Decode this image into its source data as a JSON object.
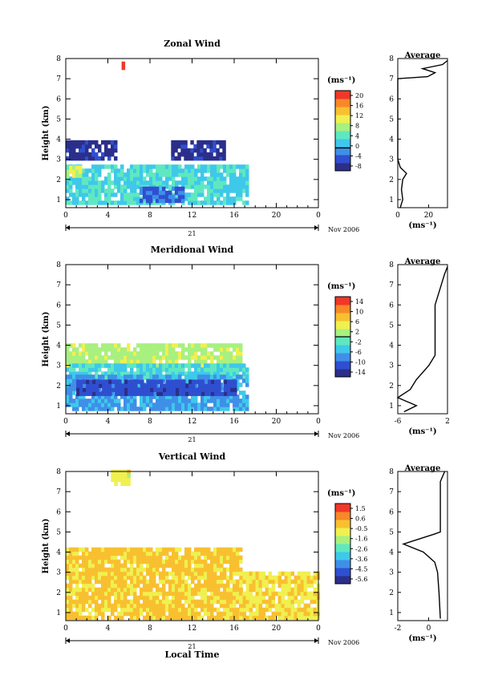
{
  "figure": {
    "y_label": "Height (km)",
    "x_label": "Local Time",
    "date_label": "Nov 2006",
    "day_label": "21",
    "x_ticks": [
      "0",
      "4",
      "8",
      "12",
      "16",
      "20",
      "0"
    ],
    "y_ticks": [
      "1",
      "2",
      "3",
      "4",
      "5",
      "6",
      "7",
      "8"
    ],
    "unit_label": "(ms⁻¹)",
    "avg_title": "Average",
    "avg_unit_label": "(ms⁻¹)"
  },
  "chart_data": [
    {
      "type": "heatmap",
      "title": "Zonal Wind",
      "x": "Local Time (h)",
      "xlim": [
        0,
        24
      ],
      "ylabel": "Height (km)",
      "ylim": [
        0.6,
        8
      ],
      "colorbar": {
        "ticks": [
          "20",
          "16",
          "12",
          "8",
          "4",
          "0",
          "-4",
          "-8"
        ],
        "range": [
          -8,
          20
        ],
        "contour_level": 0
      },
      "palette": [
        "#2b2f8a",
        "#2f4fd0",
        "#3f8fe8",
        "#3fc8ea",
        "#5fe8c0",
        "#a8f080",
        "#f0f050",
        "#f8c030",
        "#f88828",
        "#f03828"
      ],
      "regions": [
        {
          "x": [
            0,
            4.8
          ],
          "h": [
            2.95,
            3.75
          ],
          "value": -6
        },
        {
          "x": [
            10,
            15
          ],
          "h": [
            2.95,
            3.75
          ],
          "value": -6
        },
        {
          "x": [
            0,
            17.3
          ],
          "h": [
            0.75,
            2.6
          ],
          "value": 3
        },
        {
          "x": [
            7,
            11
          ],
          "h": [
            0.85,
            1.5
          ],
          "value": -3
        },
        {
          "x": [
            0,
            1.5
          ],
          "h": [
            2.1,
            2.5
          ],
          "value": 9
        },
        {
          "x": [
            5.3,
            5.5
          ],
          "h": [
            7.45,
            7.8
          ],
          "value": 20
        }
      ],
      "average": {
        "xlim": [
          0,
          40
        ],
        "x_ticks": [
          "0",
          "20"
        ],
        "profile": [
          [
            0.6,
            2
          ],
          [
            1,
            4
          ],
          [
            1.5,
            3
          ],
          [
            2,
            4
          ],
          [
            2.3,
            7
          ],
          [
            2.6,
            2
          ],
          [
            3,
            0
          ],
          [
            4,
            0
          ],
          [
            7,
            0
          ],
          [
            7.1,
            24
          ],
          [
            7.3,
            30
          ],
          [
            7.5,
            20
          ],
          [
            7.7,
            36
          ],
          [
            7.9,
            40
          ]
        ]
      }
    },
    {
      "type": "heatmap",
      "title": "Meridional Wind",
      "x": "Local Time (h)",
      "xlim": [
        0,
        24
      ],
      "ylabel": "Height (km)",
      "ylim": [
        0.6,
        8
      ],
      "colorbar": {
        "ticks": [
          "14",
          "10",
          "6",
          "2",
          "-2",
          "-6",
          "-10",
          "-14"
        ],
        "range": [
          -14,
          14
        ],
        "contour_level": 0
      },
      "palette": [
        "#2b2f8a",
        "#2f4fd0",
        "#3f8fe8",
        "#3fc8ea",
        "#5fe8c0",
        "#a8f080",
        "#f0f050",
        "#f8c030",
        "#f88828",
        "#f03828"
      ],
      "regions": [
        {
          "x": [
            0,
            16.5
          ],
          "h": [
            2.9,
            4.0
          ],
          "value": 2
        },
        {
          "x": [
            0,
            17.2
          ],
          "h": [
            2.3,
            3.0
          ],
          "value": -3
        },
        {
          "x": [
            0,
            17.2
          ],
          "h": [
            0.75,
            2.4
          ],
          "value": -6
        },
        {
          "x": [
            1,
            16
          ],
          "h": [
            1.5,
            2.2
          ],
          "value": -10
        }
      ],
      "average": {
        "xlim": [
          -6,
          2
        ],
        "x_ticks": [
          "-6",
          "2"
        ],
        "profile": [
          [
            0.7,
            -5
          ],
          [
            1,
            -3
          ],
          [
            1.4,
            -6
          ],
          [
            1.8,
            -4
          ],
          [
            2.3,
            -3
          ],
          [
            3,
            -1
          ],
          [
            3.5,
            0
          ],
          [
            4,
            0
          ],
          [
            5,
            0
          ],
          [
            6,
            0
          ],
          [
            7,
            1
          ],
          [
            7.5,
            1.5
          ],
          [
            7.9,
            2
          ]
        ]
      }
    },
    {
      "type": "heatmap",
      "title": "Vertical Wind",
      "x": "Local Time (h)",
      "xlim": [
        0,
        24
      ],
      "ylabel": "Height (km)",
      "ylim": [
        0.6,
        8
      ],
      "colorbar": {
        "ticks": [
          "1.5",
          "0.6",
          "-0.5",
          "-1.6",
          "-2.6",
          "-3.6",
          "-4.5",
          "-5.6"
        ],
        "range": [
          -6,
          2
        ],
        "contour_level": null
      },
      "palette": [
        "#2b2f8a",
        "#2f4fd0",
        "#3f8fe8",
        "#3fc8ea",
        "#5fe8c0",
        "#a8f080",
        "#f0f050",
        "#f8c030",
        "#f88828",
        "#f03828"
      ],
      "regions": [
        {
          "x": [
            0,
            16.5
          ],
          "h": [
            0.65,
            4.1
          ],
          "value": -0.2
        },
        {
          "x": [
            16.5,
            24
          ],
          "h": [
            0.65,
            3.0
          ],
          "value": -0.5
        },
        {
          "x": [
            4.3,
            6
          ],
          "h": [
            7.3,
            8.0
          ],
          "value": -0.8
        }
      ],
      "average": {
        "xlim": [
          -3,
          0.5
        ],
        "x_ticks": [
          "-2",
          "0"
        ],
        "profile": [
          [
            0.7,
            0
          ],
          [
            2,
            -0.1
          ],
          [
            3,
            -0.2
          ],
          [
            3.5,
            -0.4
          ],
          [
            4,
            -1.2
          ],
          [
            4.4,
            -2.6
          ],
          [
            4.9,
            -0.4
          ],
          [
            5,
            0
          ],
          [
            6,
            0
          ],
          [
            7,
            0
          ],
          [
            7.5,
            0
          ],
          [
            8,
            0.3
          ]
        ]
      }
    }
  ]
}
